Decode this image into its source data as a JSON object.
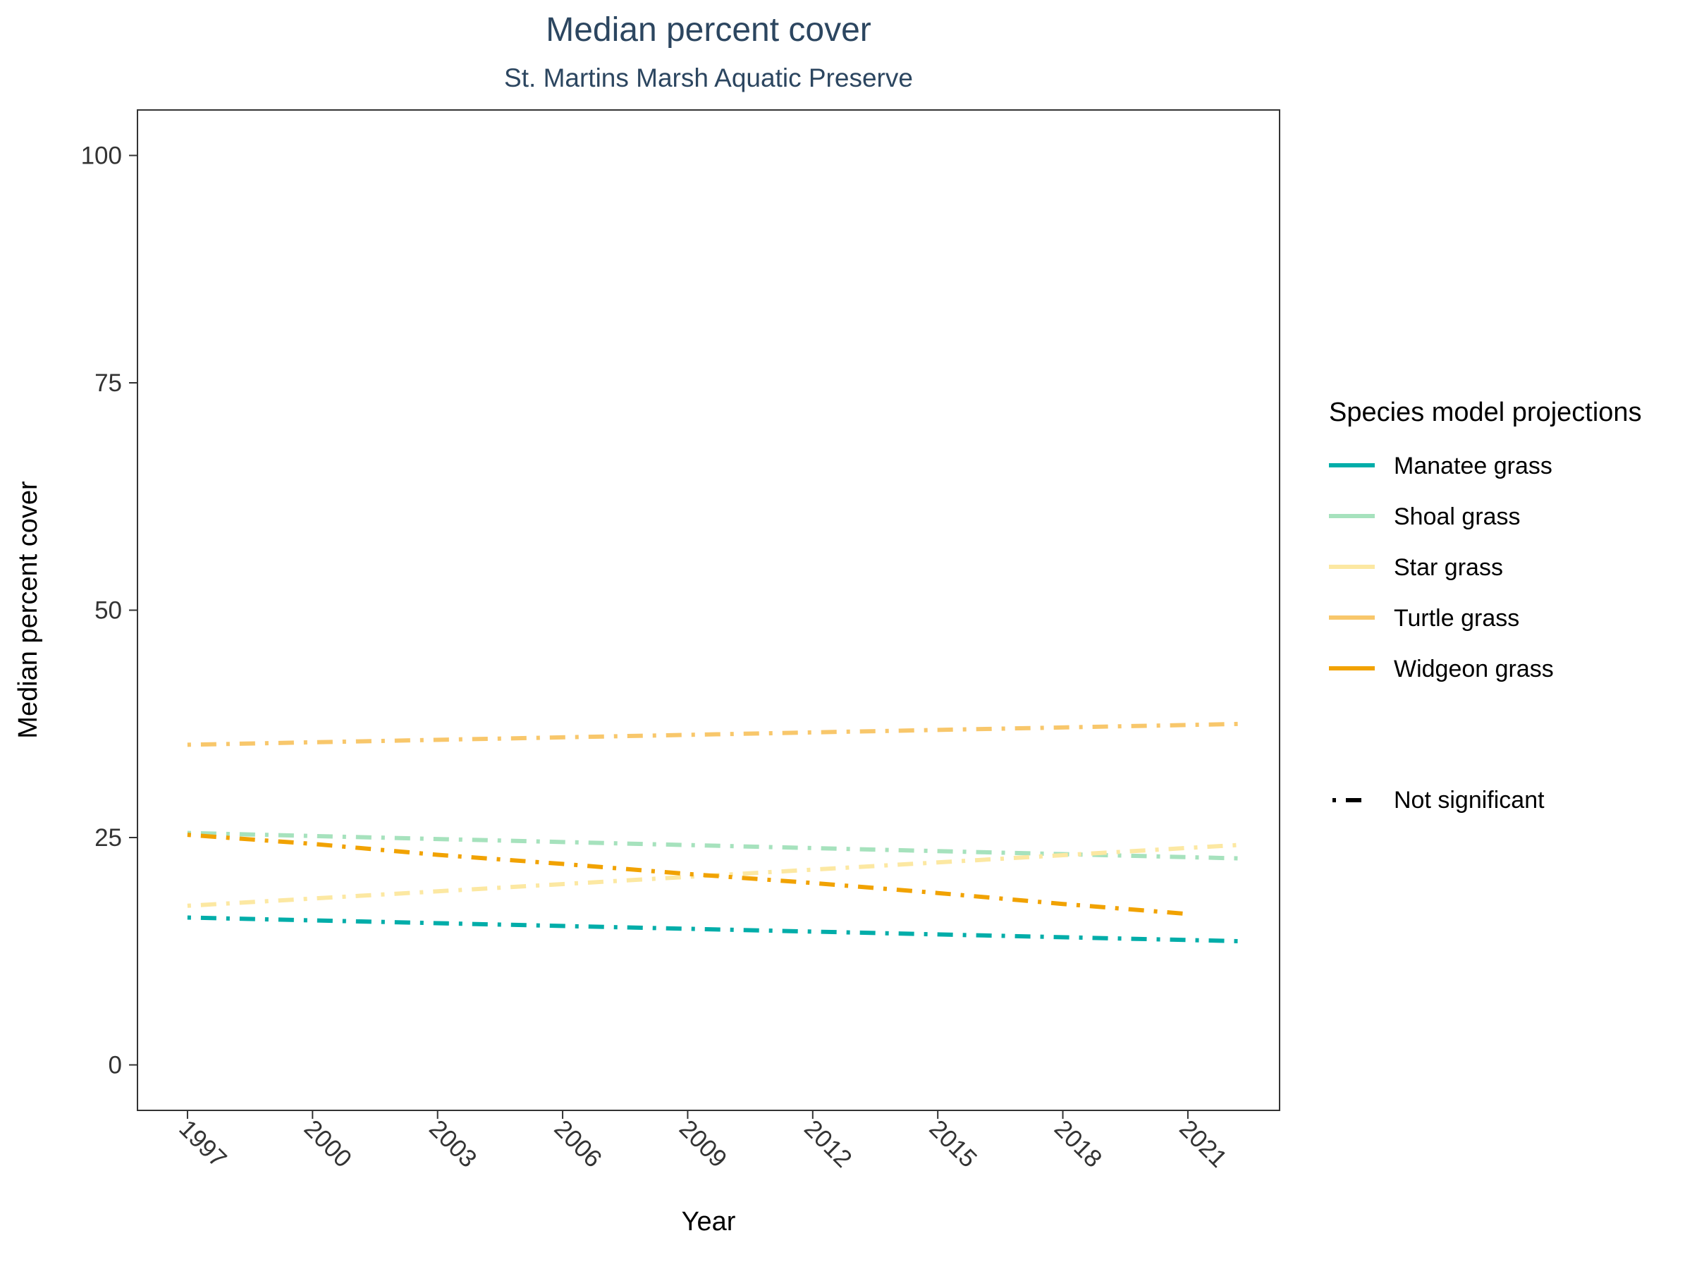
{
  "chart_data": {
    "type": "line",
    "title": "Median percent cover",
    "subtitle": "St. Martins Marsh Aquatic Preserve",
    "xlabel": "Year",
    "ylabel": "Median percent cover",
    "xlim": [
      1995.8,
      2023.2
    ],
    "ylim": [
      -5,
      105
    ],
    "x_ticks": [
      1997,
      2000,
      2003,
      2006,
      2009,
      2012,
      2015,
      2018,
      2021
    ],
    "y_ticks": [
      0,
      25,
      50,
      75,
      100
    ],
    "grid": false,
    "legend_position": "right",
    "legend_title": "Species model projections",
    "series": [
      {
        "name": "Manatee grass",
        "color": "#00ADA9",
        "x": [
          1997,
          2022.3
        ],
        "y": [
          16.2,
          13.6
        ]
      },
      {
        "name": "Shoal grass",
        "color": "#A6E2BD",
        "x": [
          1997,
          2022.3
        ],
        "y": [
          25.5,
          22.7
        ]
      },
      {
        "name": "Star grass",
        "color": "#FCE8A2",
        "x": [
          1997,
          2022.3
        ],
        "y": [
          17.5,
          24.2
        ]
      },
      {
        "name": "Turtle grass",
        "color": "#F8C76B",
        "x": [
          1997,
          2022.3
        ],
        "y": [
          35.2,
          37.5
        ]
      },
      {
        "name": "Widgeon grass",
        "color": "#F1A200",
        "x": [
          1997,
          2000,
          2003,
          2006,
          2009,
          2012,
          2015,
          2018,
          2021
        ],
        "y": [
          25.3,
          24.3,
          23.1,
          22.1,
          21.0,
          20.0,
          18.9,
          17.7,
          16.6
        ]
      }
    ],
    "linetype_legend": {
      "label": "Not significant"
    }
  }
}
